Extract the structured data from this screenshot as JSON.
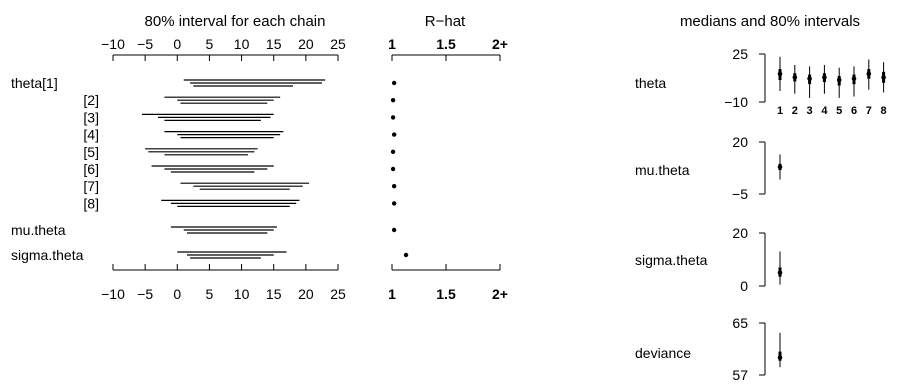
{
  "left_panel": {
    "title": "80% interval for each chain",
    "x_ticks": [
      -10,
      -5,
      0,
      5,
      10,
      15,
      20,
      25
    ],
    "xlim": [
      -10,
      25
    ],
    "row_labels": [
      "theta[1]",
      "[2]",
      "[3]",
      "[4]",
      "[5]",
      "[6]",
      "[7]",
      "[8]",
      "mu.theta",
      "sigma.theta"
    ]
  },
  "rhat_panel": {
    "title": "R−hat",
    "tick_values": [
      1,
      1.5,
      2
    ],
    "tick_labels": [
      "1",
      "1.5",
      "2+"
    ]
  },
  "right_panel": {
    "title": "medians and 80% intervals"
  },
  "chart_data": [
    {
      "type": "interval",
      "name": "80% interval for each chain",
      "rows": [
        "theta[1]",
        "[2]",
        "[3]",
        "[4]",
        "[5]",
        "[6]",
        "[7]",
        "[8]",
        "mu.theta",
        "sigma.theta"
      ],
      "xlim": [
        -10,
        25
      ],
      "chains": [
        [
          [
            1,
            23
          ],
          [
            2,
            22.5
          ],
          [
            2.5,
            18
          ]
        ],
        [
          [
            -2,
            16
          ],
          [
            0,
            15
          ],
          [
            0.5,
            14
          ]
        ],
        [
          [
            -5.5,
            15
          ],
          [
            -3,
            14.5
          ],
          [
            -2,
            13
          ]
        ],
        [
          [
            -2,
            16.5
          ],
          [
            0,
            16
          ],
          [
            0.5,
            15
          ]
        ],
        [
          [
            -5,
            12.5
          ],
          [
            -4.5,
            12
          ],
          [
            -2,
            11
          ]
        ],
        [
          [
            -4,
            15
          ],
          [
            -2,
            14
          ],
          [
            -1,
            12
          ]
        ],
        [
          [
            0.5,
            20.5
          ],
          [
            2.5,
            19.5
          ],
          [
            3.5,
            17.5
          ]
        ],
        [
          [
            -2.5,
            19
          ],
          [
            -1,
            18.5
          ],
          [
            0,
            17.5
          ]
        ],
        [
          [
            -1,
            15.5
          ],
          [
            1,
            15
          ],
          [
            1.5,
            14
          ]
        ],
        [
          [
            0,
            17
          ],
          [
            1.5,
            15
          ],
          [
            2,
            13
          ]
        ]
      ]
    },
    {
      "type": "scatter",
      "name": "R-hat",
      "rows": [
        "theta[1]",
        "[2]",
        "[3]",
        "[4]",
        "[5]",
        "[6]",
        "[7]",
        "[8]",
        "mu.theta",
        "sigma.theta"
      ],
      "xlim": [
        1,
        2
      ],
      "values": [
        1.02,
        1.01,
        1.01,
        1.02,
        1.01,
        1.01,
        1.02,
        1.02,
        1.02,
        1.13
      ]
    },
    {
      "type": "interval",
      "name": "theta",
      "ylim": [
        -10,
        25
      ],
      "y_ticks": [
        25,
        -10
      ],
      "categories": [
        "1",
        "2",
        "3",
        "4",
        "5",
        "6",
        "7",
        "8"
      ],
      "medians": [
        10.5,
        8,
        7,
        8,
        6,
        7,
        10.5,
        8
      ],
      "lower": [
        -2,
        -4,
        -7,
        -4,
        -7,
        -6,
        -1,
        -3
      ],
      "upper": [
        23,
        17,
        16,
        17,
        15,
        16,
        21,
        19
      ],
      "inner_lower": [
        6,
        5,
        3,
        4.5,
        2,
        3,
        7,
        4
      ],
      "inner_upper": [
        14,
        11,
        10,
        11,
        9,
        10,
        14,
        12
      ]
    },
    {
      "type": "interval",
      "name": "mu.theta",
      "ylim": [
        -5,
        20
      ],
      "y_ticks": [
        20,
        -5
      ],
      "medians": [
        8
      ],
      "lower": [
        2
      ],
      "upper": [
        14
      ],
      "inner_lower": [
        6.5
      ],
      "inner_upper": [
        9.5
      ]
    },
    {
      "type": "interval",
      "name": "sigma.theta",
      "ylim": [
        0,
        20
      ],
      "y_ticks": [
        20,
        0
      ],
      "medians": [
        5
      ],
      "lower": [
        0.5
      ],
      "upper": [
        13
      ],
      "inner_lower": [
        3.5
      ],
      "inner_upper": [
        7
      ]
    },
    {
      "type": "interval",
      "name": "deviance",
      "ylim": [
        57,
        65
      ],
      "y_ticks": [
        65,
        57
      ],
      "medians": [
        59.7
      ],
      "lower": [
        58.2
      ],
      "upper": [
        63.5
      ],
      "inner_lower": [
        59.2
      ],
      "inner_upper": [
        60.6
      ]
    }
  ]
}
